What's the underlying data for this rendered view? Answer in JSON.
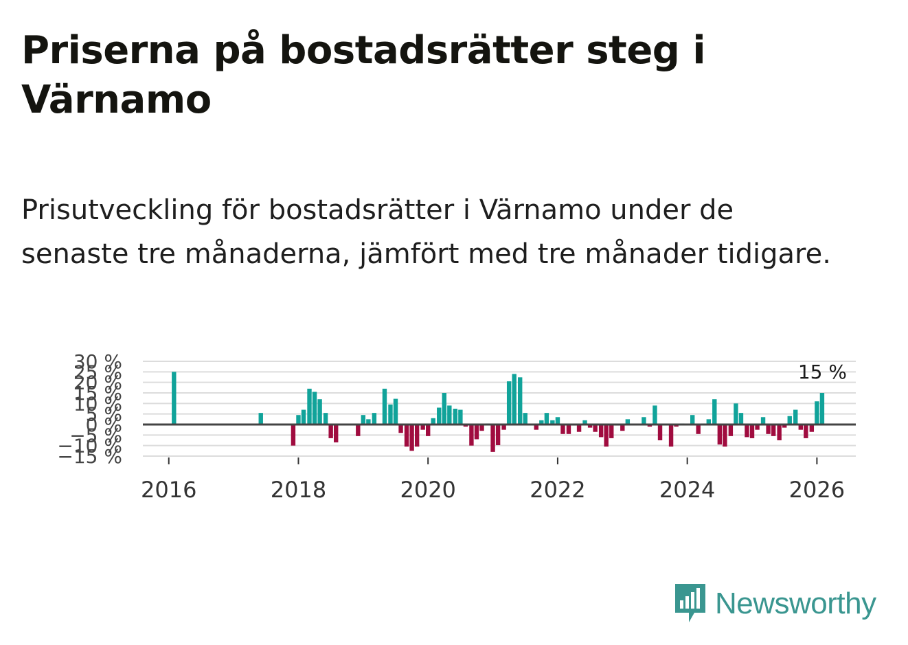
{
  "title": "Priserna på bostadsrätter steg i Värnamo",
  "subtitle": "Prisutveckling för bostadsrätter i Värnamo under de senaste tre månaderna, jämfört med tre månader tidigare.",
  "brand": {
    "name": "Newsworthy",
    "icon": "bar-chart-speech-bubble-icon",
    "color": "#3a9690"
  },
  "colors": {
    "positive": "#11a39a",
    "negative": "#a00c3f",
    "grid": "#dcdcdc",
    "zero_line": "#444444"
  },
  "chart_data": {
    "type": "bar",
    "title": "Priserna på bostadsrätter steg i Värnamo",
    "xlabel": "",
    "ylabel": "",
    "ylim": [
      -15,
      30
    ],
    "y_ticks": [
      30,
      25,
      20,
      15,
      10,
      5,
      0,
      -5,
      -10,
      -15
    ],
    "y_tick_labels": [
      "30 %",
      "25 %",
      "20 %",
      "15 %",
      "10 %",
      "5 %",
      "0 %",
      "−5 %",
      "−10 %",
      "−15 %"
    ],
    "x_ticks": [
      2016,
      2018,
      2020,
      2022,
      2024,
      2026
    ],
    "x_tick_labels": [
      "2016",
      "2018",
      "2020",
      "2022",
      "2024",
      "2026"
    ],
    "x_range": [
      2015.6,
      2026.6
    ],
    "last_value_label": "15 %",
    "x": [
      2016.08,
      2017.42,
      2017.92,
      2018.0,
      2018.08,
      2018.17,
      2018.25,
      2018.33,
      2018.42,
      2018.5,
      2018.58,
      2018.92,
      2019.0,
      2019.08,
      2019.17,
      2019.33,
      2019.42,
      2019.5,
      2019.58,
      2019.67,
      2019.75,
      2019.83,
      2019.92,
      2020.0,
      2020.08,
      2020.17,
      2020.25,
      2020.33,
      2020.42,
      2020.5,
      2020.58,
      2020.67,
      2020.75,
      2020.83,
      2020.92,
      2021.0,
      2021.08,
      2021.17,
      2021.25,
      2021.33,
      2021.42,
      2021.5,
      2021.67,
      2021.75,
      2021.83,
      2021.92,
      2022.0,
      2022.08,
      2022.17,
      2022.25,
      2022.33,
      2022.42,
      2022.5,
      2022.58,
      2022.67,
      2022.75,
      2022.83,
      2022.92,
      2023.0,
      2023.08,
      2023.33,
      2023.42,
      2023.5,
      2023.58,
      2023.75,
      2023.83,
      2023.92,
      2024.08,
      2024.17,
      2024.25,
      2024.33,
      2024.42,
      2024.5,
      2024.58,
      2024.67,
      2024.75,
      2024.83,
      2024.92,
      2025.0,
      2025.08,
      2025.17,
      2025.25,
      2025.33,
      2025.42,
      2025.5,
      2025.58,
      2025.67,
      2025.75,
      2025.83,
      2025.92,
      2026.0,
      2026.08
    ],
    "series": [
      {
        "name": "Prisutveckling",
        "values": [
          25,
          5.5,
          -10,
          4.5,
          7,
          17,
          15.5,
          12,
          5.5,
          -6.5,
          -8.5,
          -5.5,
          4.5,
          2.5,
          5.5,
          17,
          9.5,
          12.2,
          -4,
          -10.5,
          -12.5,
          -10.5,
          -2.5,
          -5.5,
          3,
          8,
          15,
          9,
          7.5,
          7,
          -1,
          -10,
          -7,
          -3,
          0.5,
          -13,
          -9.8,
          -2.5,
          20.5,
          24,
          22.4,
          5.5,
          -2.5,
          2,
          5.5,
          2,
          3.5,
          -4.5,
          -4.5,
          -0.5,
          -3.5,
          2,
          -1.5,
          -3.5,
          -6,
          -10.5,
          -6.5,
          -0.5,
          -3,
          2.5,
          3.5,
          -1,
          9,
          -7.5,
          -10.5,
          -1,
          0.5,
          4.5,
          -4.5,
          0.5,
          2.5,
          12,
          -9.5,
          -10.5,
          -5.5,
          10,
          5.5,
          -6,
          -6.5,
          -2.5,
          3.5,
          -4.5,
          -5.5,
          -7.5,
          -1.5,
          4,
          7,
          -2.5,
          -6.5,
          -3.5,
          11,
          15
        ]
      }
    ]
  }
}
